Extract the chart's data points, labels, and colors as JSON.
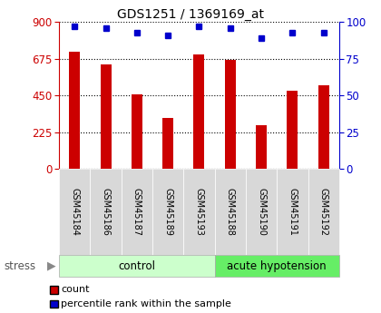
{
  "title": "GDS1251 / 1369169_at",
  "categories": [
    "GSM45184",
    "GSM45186",
    "GSM45187",
    "GSM45189",
    "GSM45193",
    "GSM45188",
    "GSM45190",
    "GSM45191",
    "GSM45192"
  ],
  "counts": [
    720,
    640,
    455,
    310,
    700,
    668,
    270,
    480,
    510
  ],
  "percentiles": [
    97,
    96,
    93,
    91,
    97,
    96,
    89,
    93,
    93
  ],
  "ylim_left": [
    0,
    900
  ],
  "ylim_right": [
    0,
    100
  ],
  "yticks_left": [
    0,
    225,
    450,
    675,
    900
  ],
  "yticks_right": [
    0,
    25,
    50,
    75,
    100
  ],
  "bar_color": "#cc0000",
  "dot_color": "#0000cc",
  "n_control": 5,
  "n_acute": 4,
  "control_label": "control",
  "acute_label": "acute hypotension",
  "stress_label": "stress",
  "legend_count": "count",
  "legend_pct": "percentile rank within the sample",
  "control_color": "#ccffcc",
  "acute_color": "#66ee66",
  "left_axis_color": "#cc0000",
  "right_axis_color": "#0000cc",
  "xtick_bg_color": "#d8d8d8",
  "plot_bg_color": "#ffffff"
}
